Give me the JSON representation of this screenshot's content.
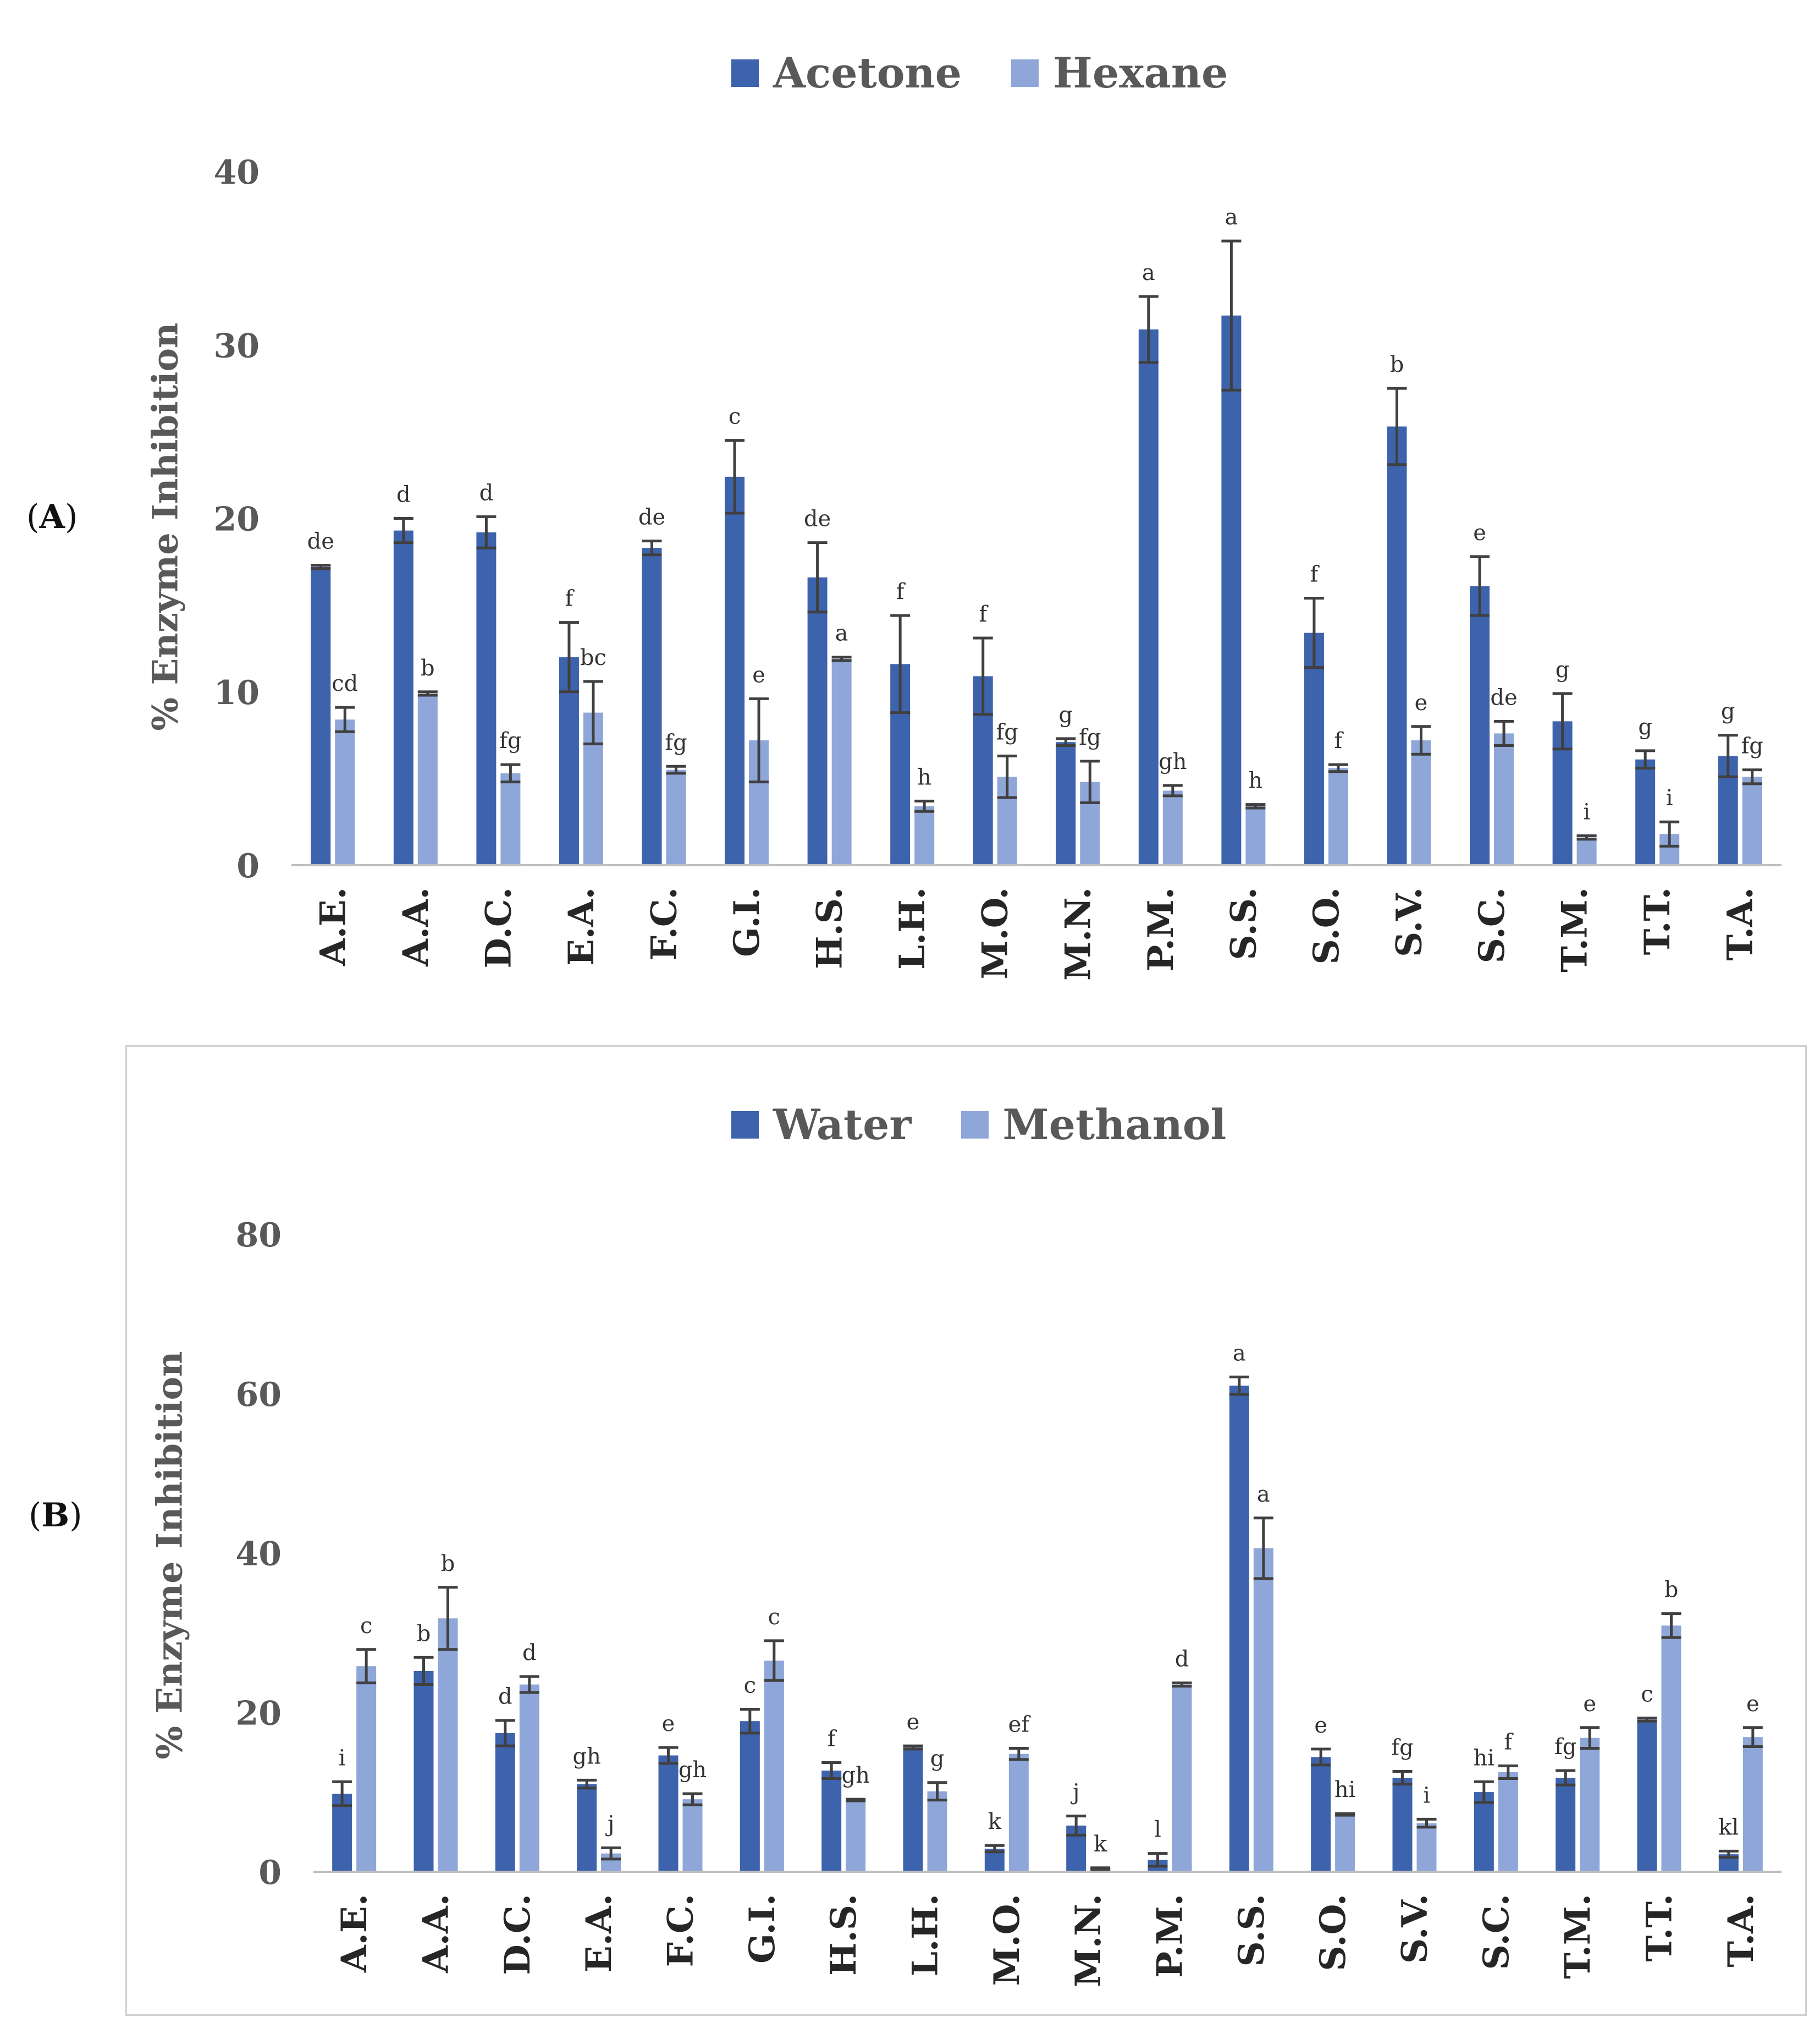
{
  "colors": {
    "primary": "#3e63ad",
    "secondary": "#8fa6d8",
    "axis": "#bfbfbf",
    "text": "#595959",
    "error": "#404040"
  },
  "chart_data": [
    {
      "panel_label": "A",
      "type": "bar",
      "ylabel": "% Enzyme Inhibition",
      "ylim": [
        0,
        40
      ],
      "yticks": [
        0,
        10,
        20,
        30,
        40
      ],
      "legend_position": "top-center",
      "categories": [
        "A.E.",
        "A.A.",
        "D.C.",
        "E.A.",
        "F.C.",
        "G.I.",
        "H.S.",
        "L.H.",
        "M.O.",
        "M.N.",
        "P.M.",
        "S.S.",
        "S.O.",
        "S.V.",
        "S.C.",
        "T.M.",
        "T.T.",
        "T.A."
      ],
      "series": [
        {
          "name": "Acetone",
          "values": [
            17.2,
            19.3,
            19.2,
            12.0,
            18.3,
            22.4,
            16.6,
            11.6,
            10.9,
            7.1,
            30.9,
            31.7,
            13.4,
            25.3,
            16.1,
            8.3,
            6.1,
            6.3
          ],
          "errors": [
            0.1,
            0.7,
            0.9,
            2.0,
            0.4,
            2.1,
            2.0,
            2.8,
            2.2,
            0.2,
            1.9,
            4.3,
            2.0,
            2.2,
            1.7,
            1.6,
            0.5,
            1.2
          ],
          "letters": [
            "de",
            "d",
            "d",
            "f",
            "de",
            "c",
            "de",
            "f",
            "f",
            "g",
            "a",
            "a",
            "f",
            "b",
            "e",
            "g",
            "g",
            "g"
          ]
        },
        {
          "name": "Hexane",
          "values": [
            8.4,
            9.9,
            5.3,
            8.8,
            5.5,
            7.2,
            11.9,
            3.4,
            5.1,
            4.8,
            4.3,
            3.4,
            5.6,
            7.2,
            7.6,
            1.6,
            1.8,
            5.1
          ],
          "errors": [
            0.7,
            0.1,
            0.5,
            1.8,
            0.2,
            2.4,
            0.1,
            0.3,
            1.2,
            1.2,
            0.3,
            0.1,
            0.2,
            0.8,
            0.7,
            0.1,
            0.7,
            0.4
          ],
          "letters": [
            "cd",
            "b",
            "fg",
            "bc",
            "fg",
            "e",
            "a",
            "h",
            "fg",
            "fg",
            "gh",
            "h",
            "f",
            "e",
            "de",
            "i",
            "i",
            "fg"
          ]
        }
      ]
    },
    {
      "panel_label": "B",
      "type": "bar",
      "ylabel": "% Enzyme Inhibition",
      "ylim": [
        0,
        80
      ],
      "yticks": [
        0,
        20,
        40,
        60,
        80
      ],
      "legend_position": "top-center",
      "categories": [
        "A.E.",
        "A.A.",
        "D.C.",
        "E.A.",
        "F.C.",
        "G.I.",
        "H.S.",
        "L.H.",
        "M.O.",
        "M.N.",
        "P.M.",
        "S.S.",
        "S.O.",
        "S.V.",
        "S.C.",
        "T.M.",
        "T.T.",
        "T.A."
      ],
      "series": [
        {
          "name": "Water",
          "values": [
            9.8,
            25.2,
            17.4,
            11.0,
            14.6,
            18.9,
            12.7,
            15.6,
            2.9,
            5.8,
            1.5,
            61.0,
            14.4,
            11.8,
            10.0,
            11.8,
            19.1,
            2.2
          ],
          "errors": [
            1.5,
            1.7,
            1.6,
            0.5,
            1.0,
            1.5,
            1.0,
            0.2,
            0.4,
            1.2,
            0.8,
            1.1,
            1.0,
            0.8,
            1.3,
            0.9,
            0.2,
            0.4
          ],
          "letters": [
            "i",
            "b",
            "d",
            "gh",
            "e",
            "c",
            "f",
            "e",
            "k",
            "j",
            "l",
            "a",
            "e",
            "fg",
            "hi",
            "fg",
            "c",
            "kl"
          ]
        },
        {
          "name": "Methanol",
          "values": [
            25.8,
            31.8,
            23.5,
            2.3,
            9.1,
            26.5,
            9.0,
            10.1,
            14.8,
            0.4,
            23.5,
            40.6,
            7.2,
            6.1,
            12.5,
            16.8,
            30.9,
            16.9
          ],
          "errors": [
            2.1,
            3.9,
            1.0,
            0.7,
            0.7,
            2.5,
            0.1,
            1.1,
            0.7,
            0.1,
            0.2,
            3.8,
            0.1,
            0.5,
            0.8,
            1.3,
            1.5,
            1.2
          ],
          "letters": [
            "c",
            "b",
            "d",
            "j",
            "gh",
            "c",
            "gh",
            "g",
            "ef",
            "k",
            "d",
            "a",
            "hi",
            "i",
            "f",
            "e",
            "b",
            "e"
          ]
        }
      ]
    }
  ]
}
